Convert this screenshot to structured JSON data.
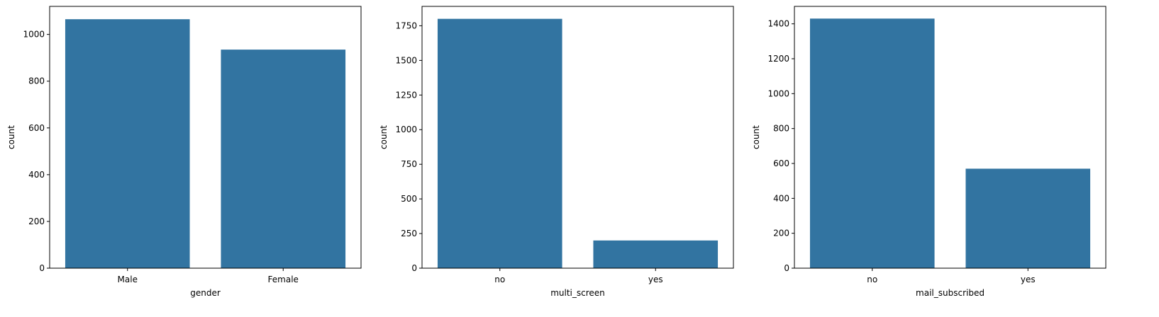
{
  "chart_data": [
    {
      "type": "bar",
      "categories": [
        "Male",
        "Female"
      ],
      "values": [
        1065,
        935
      ],
      "xlabel": "gender",
      "ylabel": "count",
      "ylim": [
        0,
        1120
      ],
      "yticks": [
        0,
        200,
        400,
        600,
        800,
        1000
      ],
      "grid": false,
      "bar_color": "#3274a1"
    },
    {
      "type": "bar",
      "categories": [
        "no",
        "yes"
      ],
      "values": [
        1800,
        200
      ],
      "xlabel": "multi_screen",
      "ylabel": "count",
      "ylim": [
        0,
        1890
      ],
      "yticks": [
        0,
        250,
        500,
        750,
        1000,
        1250,
        1500,
        1750
      ],
      "grid": false,
      "bar_color": "#3274a1"
    },
    {
      "type": "bar",
      "categories": [
        "no",
        "yes"
      ],
      "values": [
        1430,
        570
      ],
      "xlabel": "mail_subscribed",
      "ylabel": "count",
      "ylim": [
        0,
        1500
      ],
      "yticks": [
        0,
        200,
        400,
        600,
        800,
        1000,
        1200,
        1400
      ],
      "grid": false,
      "bar_color": "#3274a1"
    }
  ]
}
